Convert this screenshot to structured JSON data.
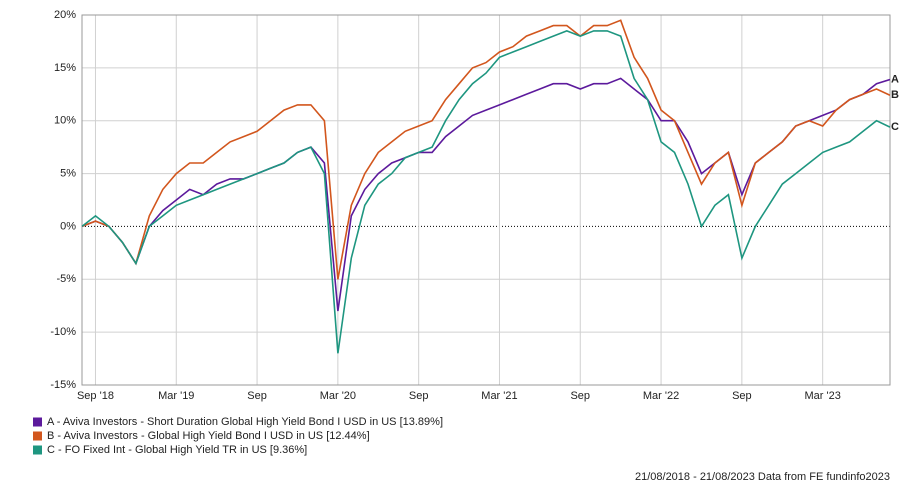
{
  "chart_data": {
    "type": "line",
    "categories": [
      null,
      "Sep '18",
      null,
      null,
      null,
      null,
      null,
      "Mar '19",
      null,
      null,
      null,
      null,
      null,
      "Sep",
      null,
      null,
      null,
      null,
      null,
      "Mar '20",
      null,
      null,
      null,
      null,
      null,
      "Sep",
      null,
      null,
      null,
      null,
      null,
      "Mar '21",
      null,
      null,
      null,
      null,
      null,
      "Sep",
      null,
      null,
      null,
      null,
      null,
      "Mar '22",
      null,
      null,
      null,
      null,
      null,
      "Sep",
      null,
      null,
      null,
      null,
      null,
      "Mar '23",
      null,
      null,
      null,
      null,
      null
    ],
    "series": [
      {
        "name": "A - Aviva Investors - Short Duration Global High Yield Bond I USD in US [13.89%]",
        "end_label": "A",
        "color": "#5c1a9c",
        "values": [
          0,
          0.5,
          0,
          -1.5,
          -3.5,
          0,
          1.5,
          2.5,
          3.5,
          3,
          4,
          4.5,
          4.5,
          5,
          5.5,
          6,
          7,
          7.5,
          6,
          -8,
          1,
          3.5,
          5,
          6,
          6.5,
          7,
          7,
          8.5,
          9.5,
          10.5,
          11,
          11.5,
          12,
          12.5,
          13,
          13.5,
          13.5,
          13,
          13.5,
          13.5,
          14,
          13,
          12,
          10,
          10,
          8,
          5,
          6,
          7,
          3,
          6,
          7,
          8,
          9.5,
          10,
          10.5,
          11,
          12,
          12.5,
          13.5,
          13.9
        ]
      },
      {
        "name": "B - Aviva Investors - Global High Yield Bond I USD in US [12.44%]",
        "end_label": "B",
        "color": "#d2561d",
        "values": [
          0,
          0.5,
          0,
          -1.5,
          -3.5,
          1,
          3.5,
          5,
          6,
          6,
          7,
          8,
          8.5,
          9,
          10,
          11,
          11.5,
          11.5,
          10,
          -5,
          2,
          5,
          7,
          8,
          9,
          9.5,
          10,
          12,
          13.5,
          15,
          15.5,
          16.5,
          17,
          18,
          18.5,
          19,
          19,
          18,
          19,
          19,
          19.5,
          16,
          14,
          11,
          10,
          7,
          4,
          6,
          7,
          2,
          6,
          7,
          8,
          9.5,
          10,
          9.5,
          11,
          12,
          12.5,
          13,
          12.4
        ]
      },
      {
        "name": "C - FO Fixed Int - Global High Yield TR in US [9.36%]",
        "end_label": "C",
        "color": "#1e9680",
        "values": [
          0,
          1,
          0,
          -1.5,
          -3.5,
          0,
          1,
          2,
          2.5,
          3,
          3.5,
          4,
          4.5,
          5,
          5.5,
          6,
          7,
          7.5,
          5,
          -12,
          -3,
          2,
          4,
          5,
          6.5,
          7,
          7.5,
          10,
          12,
          13.5,
          14.5,
          16,
          16.5,
          17,
          17.5,
          18,
          18.5,
          18,
          18.5,
          18.5,
          18,
          14,
          12,
          8,
          7,
          4,
          0,
          2,
          3,
          -3,
          0,
          2,
          4,
          5,
          6,
          7,
          7.5,
          8,
          9,
          10,
          9.4
        ]
      }
    ],
    "ylim": [
      -15,
      20
    ],
    "yticks": [
      {
        "value": -15,
        "label": "-15%"
      },
      {
        "value": -10,
        "label": "-10%"
      },
      {
        "value": -5,
        "label": "-5%"
      },
      {
        "value": 0,
        "label": "0%"
      },
      {
        "value": 5,
        "label": "5%"
      },
      {
        "value": 10,
        "label": "10%"
      },
      {
        "value": 15,
        "label": "15%"
      },
      {
        "value": 20,
        "label": "20%"
      }
    ],
    "grid": true,
    "footer": "21/08/2018 - 21/08/2023 Data from FE fundinfo2023"
  }
}
